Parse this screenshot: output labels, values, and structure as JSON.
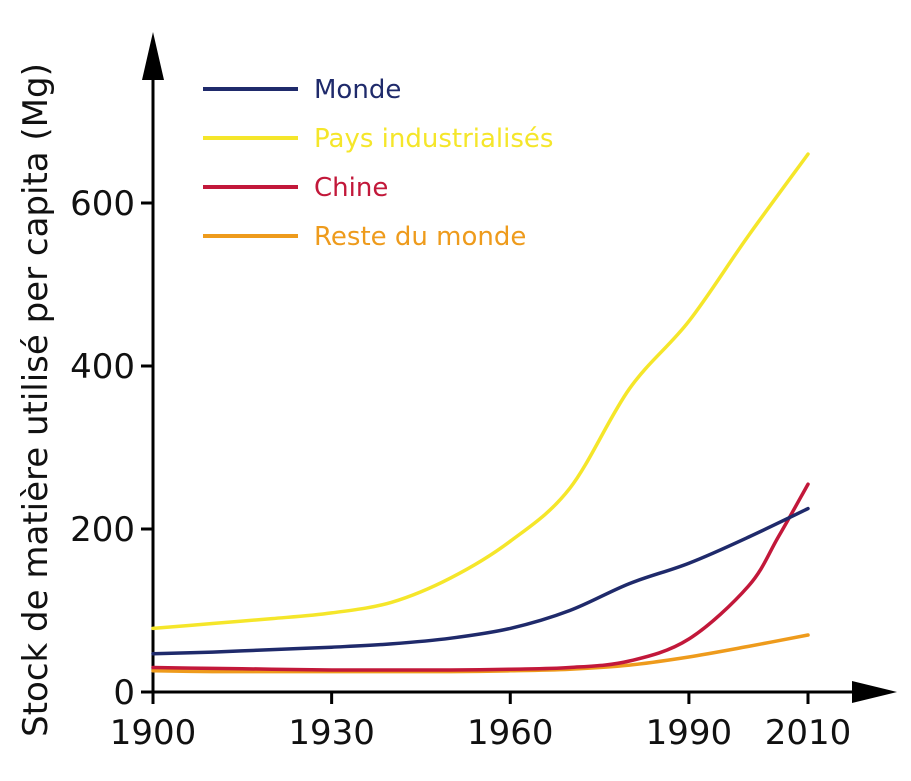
{
  "chart_data": {
    "type": "line",
    "ylabel": "Stock de matière utilisé per capita  (Mg)",
    "xlabel": "",
    "x_ticks": [
      "1900",
      "1930",
      "1960",
      "1990",
      "2010"
    ],
    "y_ticks": [
      "0",
      "200",
      "400",
      "600"
    ],
    "xlim": [
      1900,
      2023
    ],
    "ylim": [
      0,
      780
    ],
    "grid": false,
    "legend_position": "top-left",
    "series": [
      {
        "name": "Monde",
        "color": "#1f2a6b",
        "x": [
          1900,
          1910,
          1920,
          1930,
          1940,
          1950,
          1960,
          1970,
          1980,
          1990,
          2000,
          2010
        ],
        "y": [
          47,
          49,
          52,
          55,
          59,
          66,
          78,
          100,
          133,
          158,
          190,
          225
        ]
      },
      {
        "name": "Pays industrialisés",
        "color": "#f5e62a",
        "x": [
          1900,
          1910,
          1920,
          1930,
          1940,
          1950,
          1960,
          1970,
          1980,
          1990,
          2000,
          2010
        ],
        "y": [
          78,
          84,
          90,
          97,
          110,
          140,
          185,
          250,
          372,
          455,
          560,
          660
        ]
      },
      {
        "name": "Chine",
        "color": "#c2183a",
        "x": [
          1900,
          1910,
          1920,
          1930,
          1940,
          1950,
          1960,
          1970,
          1980,
          1990,
          2000,
          2005,
          2010
        ],
        "y": [
          30,
          29,
          28,
          27,
          27,
          27,
          28,
          30,
          38,
          65,
          130,
          190,
          255
        ]
      },
      {
        "name": "Reste du monde",
        "color": "#ee9b1c",
        "x": [
          1900,
          1910,
          1920,
          1930,
          1940,
          1950,
          1960,
          1970,
          1980,
          1990,
          2000,
          2010
        ],
        "y": [
          26,
          25,
          25,
          25,
          25,
          25,
          26,
          28,
          33,
          43,
          56,
          70
        ]
      }
    ]
  }
}
